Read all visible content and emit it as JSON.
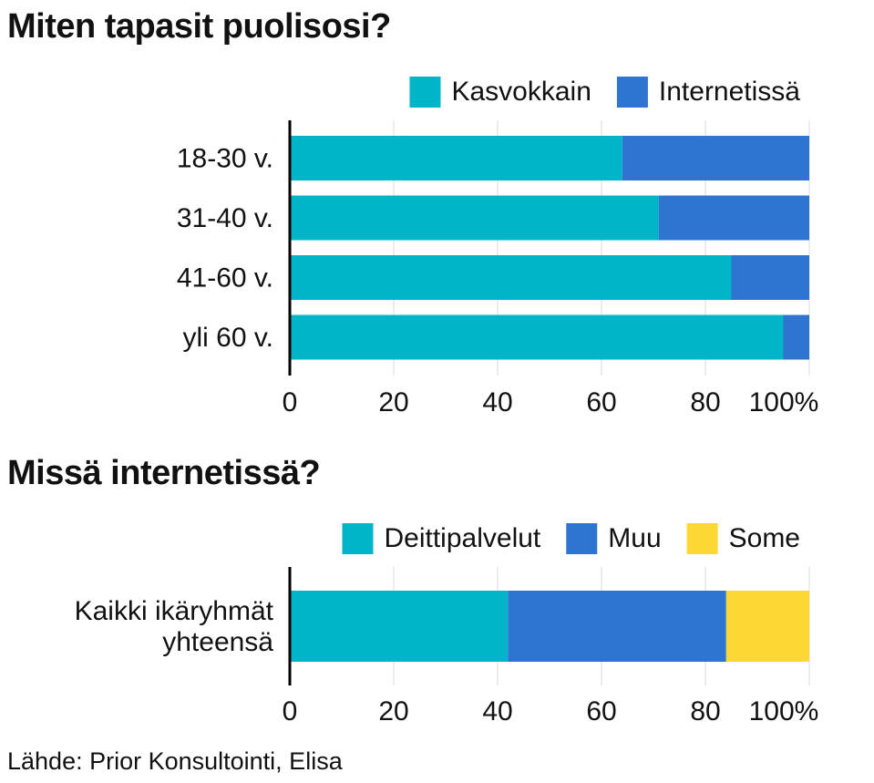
{
  "chart_data": [
    {
      "type": "bar",
      "orientation": "horizontal",
      "stacked": true,
      "title": "Miten tapasit puolisosi?",
      "categories": [
        "18-30 v.",
        "31-40 v.",
        "41-60 v.",
        "yli 60 v."
      ],
      "series": [
        {
          "name": "Kasvokkain",
          "color": "#00b5c8",
          "values": [
            64,
            71,
            85,
            95
          ]
        },
        {
          "name": "Internetissä",
          "color": "#2f74d0",
          "values": [
            36,
            29,
            15,
            5
          ]
        }
      ],
      "xlim": [
        0,
        100
      ],
      "xticks": [
        "0",
        "20",
        "40",
        "60",
        "80",
        "100%"
      ],
      "legend_position": "top-right",
      "grid": true
    },
    {
      "type": "bar",
      "orientation": "horizontal",
      "stacked": true,
      "title": "Missä internetissä?",
      "categories": [
        "Kaikki ikäryhmät yhteensä"
      ],
      "category_lines": [
        [
          "Kaikki ikäryhmät",
          "yhteensä"
        ]
      ],
      "series": [
        {
          "name": "Deittipalvelut",
          "color": "#00b5c8",
          "values": [
            42
          ]
        },
        {
          "name": "Muu",
          "color": "#2f74d0",
          "values": [
            42
          ]
        },
        {
          "name": "Some",
          "color": "#fdd835",
          "values": [
            16
          ]
        }
      ],
      "xlim": [
        0,
        100
      ],
      "xticks": [
        "0",
        "20",
        "40",
        "60",
        "80",
        "100%"
      ],
      "legend_position": "top-right",
      "grid": true
    }
  ],
  "source": "Lähde: Prior Konsultointi, Elisa"
}
